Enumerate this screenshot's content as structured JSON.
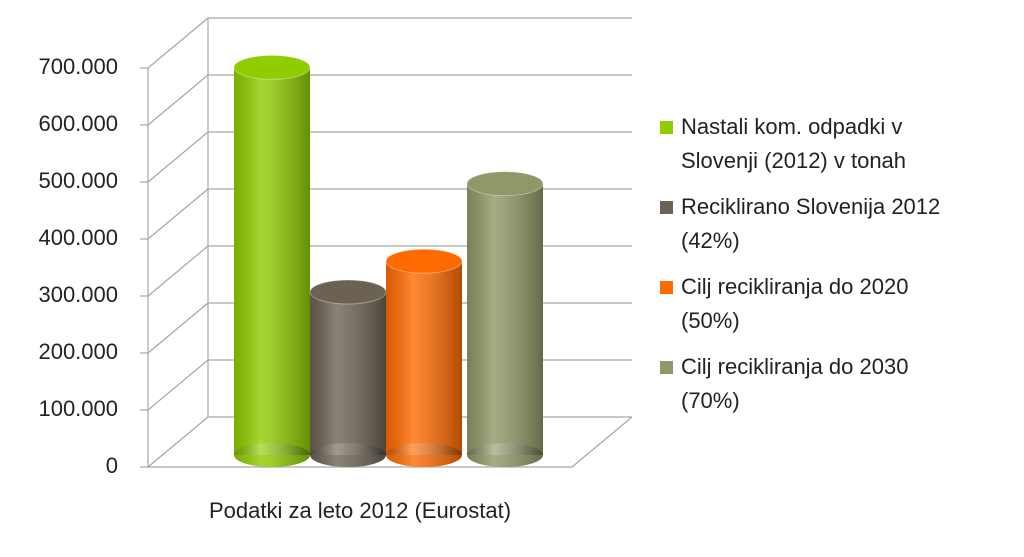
{
  "chart_data": {
    "type": "bar3d",
    "categories": [
      "Podatki za leto 2012 (Eurostat)"
    ],
    "series": [
      {
        "name": "Nastali kom. odpadki v Slovenji (2012) v tonah",
        "color": "#8fcc00",
        "values": [
          680000
        ]
      },
      {
        "name": "Reciklirano Slovenija 2012 (42%)",
        "color": "#6b6254",
        "values": [
          286000
        ]
      },
      {
        "name": "Cilj recikliranja do 2020 (50%)",
        "color": "#ff6a00",
        "values": [
          340000
        ]
      },
      {
        "name": "Cilj recikliranja do 2030 (70%)",
        "color": "#8f9866",
        "values": [
          476000
        ]
      }
    ],
    "ylim": [
      0,
      700000
    ],
    "yticks": [
      0,
      {
        "value": 100000,
        "label": "100.000"
      },
      {
        "value": 200000,
        "label": "200.000"
      },
      {
        "value": 300000,
        "label": "300.000"
      },
      {
        "value": 400000,
        "label": "400.000"
      },
      {
        "value": 500000,
        "label": "500.000"
      },
      {
        "value": 600000,
        "label": "600.000"
      },
      {
        "value": 700000,
        "label": "700.000"
      }
    ],
    "grid": true,
    "legend": "right"
  }
}
